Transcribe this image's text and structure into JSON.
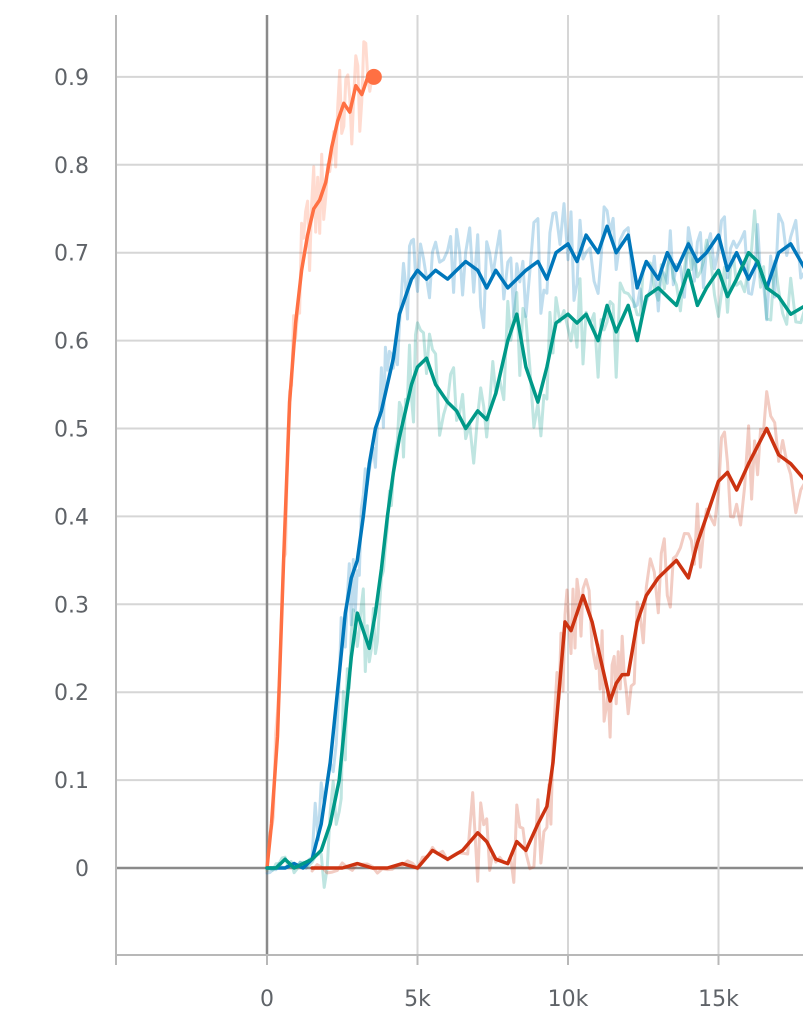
{
  "chart_data": {
    "type": "line",
    "title": "",
    "xlabel": "",
    "ylabel": "",
    "xlim": [
      -5000,
      17900
    ],
    "ylim": [
      -0.1,
      0.96
    ],
    "x_ticks": [
      0,
      5000,
      10000,
      15000
    ],
    "x_tick_labels": [
      "0",
      "5k",
      "10k",
      "15k"
    ],
    "y_ticks": [
      0,
      0.1,
      0.2,
      0.3,
      0.4,
      0.5,
      0.6,
      0.7,
      0.8,
      0.9
    ],
    "y_tick_labels": [
      "0",
      "0.1",
      "0.2",
      "0.3",
      "0.4",
      "0.5",
      "0.6",
      "0.7",
      "0.8",
      "0.9"
    ],
    "grid": true,
    "legend": "none",
    "series": [
      {
        "color": "#ff7043",
        "end_marker": true,
        "points": [
          [
            0,
            0
          ],
          [
            150,
            0.05
          ],
          [
            350,
            0.15
          ],
          [
            550,
            0.35
          ],
          [
            750,
            0.53
          ],
          [
            950,
            0.62
          ],
          [
            1150,
            0.68
          ],
          [
            1350,
            0.72
          ],
          [
            1550,
            0.75
          ],
          [
            1750,
            0.76
          ],
          [
            1950,
            0.78
          ],
          [
            2150,
            0.82
          ],
          [
            2350,
            0.85
          ],
          [
            2550,
            0.87
          ],
          [
            2750,
            0.86
          ],
          [
            2950,
            0.89
          ],
          [
            3150,
            0.88
          ],
          [
            3350,
            0.9
          ],
          [
            3550,
            0.9
          ]
        ]
      },
      {
        "color": "#0077bb",
        "points": [
          [
            0,
            0
          ],
          [
            300,
            0
          ],
          [
            600,
            0
          ],
          [
            900,
            0.005
          ],
          [
            1200,
            0
          ],
          [
            1500,
            0.01
          ],
          [
            1800,
            0.05
          ],
          [
            2100,
            0.12
          ],
          [
            2400,
            0.22
          ],
          [
            2600,
            0.29
          ],
          [
            2800,
            0.33
          ],
          [
            3000,
            0.35
          ],
          [
            3200,
            0.4
          ],
          [
            3400,
            0.46
          ],
          [
            3600,
            0.5
          ],
          [
            3800,
            0.52
          ],
          [
            4000,
            0.55
          ],
          [
            4200,
            0.58
          ],
          [
            4400,
            0.63
          ],
          [
            4600,
            0.65
          ],
          [
            4800,
            0.67
          ],
          [
            5000,
            0.68
          ],
          [
            5300,
            0.67
          ],
          [
            5600,
            0.68
          ],
          [
            6000,
            0.67
          ],
          [
            6300,
            0.68
          ],
          [
            6600,
            0.69
          ],
          [
            7000,
            0.68
          ],
          [
            7300,
            0.66
          ],
          [
            7600,
            0.68
          ],
          [
            8000,
            0.66
          ],
          [
            8300,
            0.67
          ],
          [
            8600,
            0.68
          ],
          [
            9000,
            0.69
          ],
          [
            9300,
            0.67
          ],
          [
            9600,
            0.7
          ],
          [
            10000,
            0.71
          ],
          [
            10300,
            0.69
          ],
          [
            10600,
            0.72
          ],
          [
            11000,
            0.7
          ],
          [
            11300,
            0.73
          ],
          [
            11600,
            0.7
          ],
          [
            12000,
            0.72
          ],
          [
            12300,
            0.66
          ],
          [
            12600,
            0.69
          ],
          [
            13000,
            0.67
          ],
          [
            13300,
            0.7
          ],
          [
            13600,
            0.68
          ],
          [
            14000,
            0.71
          ],
          [
            14300,
            0.69
          ],
          [
            14600,
            0.7
          ],
          [
            15000,
            0.72
          ],
          [
            15300,
            0.68
          ],
          [
            15600,
            0.7
          ],
          [
            16000,
            0.67
          ],
          [
            16300,
            0.69
          ],
          [
            16600,
            0.66
          ],
          [
            17000,
            0.7
          ],
          [
            17400,
            0.71
          ],
          [
            17900,
            0.68
          ]
        ]
      },
      {
        "color": "#009988",
        "points": [
          [
            0,
            0
          ],
          [
            300,
            0
          ],
          [
            600,
            0.01
          ],
          [
            900,
            0
          ],
          [
            1200,
            0.005
          ],
          [
            1500,
            0.01
          ],
          [
            1800,
            0.02
          ],
          [
            2100,
            0.05
          ],
          [
            2400,
            0.1
          ],
          [
            2600,
            0.17
          ],
          [
            2800,
            0.24
          ],
          [
            3000,
            0.29
          ],
          [
            3200,
            0.27
          ],
          [
            3400,
            0.25
          ],
          [
            3600,
            0.29
          ],
          [
            3800,
            0.34
          ],
          [
            4000,
            0.4
          ],
          [
            4200,
            0.45
          ],
          [
            4400,
            0.49
          ],
          [
            4600,
            0.52
          ],
          [
            4800,
            0.55
          ],
          [
            5000,
            0.57
          ],
          [
            5300,
            0.58
          ],
          [
            5600,
            0.55
          ],
          [
            6000,
            0.53
          ],
          [
            6300,
            0.52
          ],
          [
            6600,
            0.5
          ],
          [
            7000,
            0.52
          ],
          [
            7300,
            0.51
          ],
          [
            7600,
            0.54
          ],
          [
            8000,
            0.6
          ],
          [
            8300,
            0.63
          ],
          [
            8600,
            0.57
          ],
          [
            9000,
            0.53
          ],
          [
            9300,
            0.57
          ],
          [
            9600,
            0.62
          ],
          [
            10000,
            0.63
          ],
          [
            10300,
            0.62
          ],
          [
            10600,
            0.63
          ],
          [
            11000,
            0.6
          ],
          [
            11300,
            0.64
          ],
          [
            11600,
            0.61
          ],
          [
            12000,
            0.64
          ],
          [
            12300,
            0.6
          ],
          [
            12600,
            0.65
          ],
          [
            13000,
            0.66
          ],
          [
            13300,
            0.65
          ],
          [
            13600,
            0.64
          ],
          [
            14000,
            0.68
          ],
          [
            14300,
            0.64
          ],
          [
            14600,
            0.66
          ],
          [
            15000,
            0.68
          ],
          [
            15300,
            0.65
          ],
          [
            15600,
            0.67
          ],
          [
            16000,
            0.7
          ],
          [
            16300,
            0.69
          ],
          [
            16600,
            0.66
          ],
          [
            17000,
            0.65
          ],
          [
            17400,
            0.63
          ],
          [
            17900,
            0.64
          ]
        ]
      },
      {
        "color": "#cc3311",
        "points": [
          [
            1500,
            0
          ],
          [
            2000,
            0
          ],
          [
            2500,
            0
          ],
          [
            3000,
            0.005
          ],
          [
            3500,
            0
          ],
          [
            4000,
            0
          ],
          [
            4500,
            0.005
          ],
          [
            5000,
            0
          ],
          [
            5500,
            0.02
          ],
          [
            6000,
            0.01
          ],
          [
            6500,
            0.02
          ],
          [
            7000,
            0.04
          ],
          [
            7300,
            0.03
          ],
          [
            7600,
            0.01
          ],
          [
            8000,
            0.005
          ],
          [
            8300,
            0.03
          ],
          [
            8600,
            0.02
          ],
          [
            9000,
            0.05
          ],
          [
            9300,
            0.07
          ],
          [
            9500,
            0.12
          ],
          [
            9700,
            0.2
          ],
          [
            9900,
            0.28
          ],
          [
            10100,
            0.27
          ],
          [
            10300,
            0.29
          ],
          [
            10500,
            0.31
          ],
          [
            10800,
            0.28
          ],
          [
            11000,
            0.25
          ],
          [
            11200,
            0.22
          ],
          [
            11400,
            0.19
          ],
          [
            11600,
            0.21
          ],
          [
            11800,
            0.22
          ],
          [
            12000,
            0.22
          ],
          [
            12300,
            0.28
          ],
          [
            12600,
            0.31
          ],
          [
            13000,
            0.33
          ],
          [
            13300,
            0.34
          ],
          [
            13600,
            0.35
          ],
          [
            14000,
            0.33
          ],
          [
            14300,
            0.37
          ],
          [
            14600,
            0.4
          ],
          [
            15000,
            0.44
          ],
          [
            15300,
            0.45
          ],
          [
            15600,
            0.43
          ],
          [
            16000,
            0.46
          ],
          [
            16300,
            0.48
          ],
          [
            16600,
            0.5
          ],
          [
            17000,
            0.47
          ],
          [
            17400,
            0.46
          ],
          [
            17900,
            0.44
          ]
        ]
      }
    ]
  }
}
